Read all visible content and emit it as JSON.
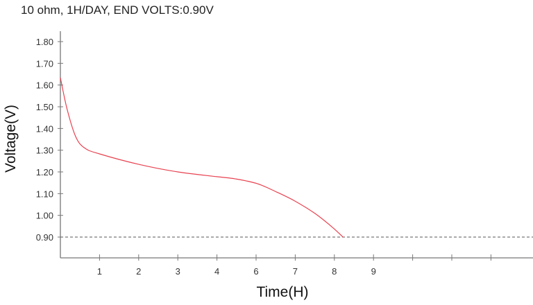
{
  "chart_data": {
    "type": "line",
    "title": "10 ohm, 1H/DAY, END VOLTS:0.90V",
    "xlabel": "Time(H)",
    "ylabel": "Voltage(V)",
    "ylim": [
      0.8,
      1.85
    ],
    "yticks": [
      "1.80",
      "1.70",
      "1.60",
      "1.50",
      "1.40",
      "1.30",
      "1.20",
      "1.10",
      "1.00",
      "0.90"
    ],
    "xtick_labels": [
      "1",
      "2",
      "3",
      "4",
      "6",
      "7",
      "8",
      "9",
      "",
      "",
      ""
    ],
    "grid": false,
    "reference_line": {
      "y": 0.9,
      "style": "dashed",
      "color": "#555555"
    },
    "series": [
      {
        "color": "#e8414f",
        "x": [
          0,
          0.17,
          0.39,
          0.62,
          1.0,
          2.0,
          3.0,
          4.0,
          4.94,
          6.03,
          6.53,
          6.99,
          7.51,
          7.95,
          8.22
        ],
        "y": [
          1.634,
          1.49,
          1.363,
          1.31,
          1.283,
          1.235,
          1.2,
          1.178,
          1.168,
          1.146,
          1.107,
          1.066,
          1.008,
          0.945,
          0.9
        ]
      }
    ]
  }
}
